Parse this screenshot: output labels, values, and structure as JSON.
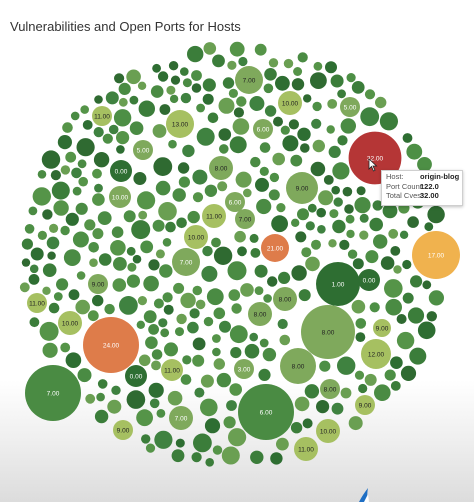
{
  "title": "Vulnerabilities and Open Ports for Hosts",
  "tooltip": {
    "host_key": "Host:",
    "host_value": "origin-blog",
    "ports_key": "Port Count:",
    "ports_value": "122.0",
    "cves_key": "Total Cves:",
    "cves_value": "32.00"
  },
  "colors": {
    "dark_green": "#2e6e32",
    "mid_green": "#4a8b43",
    "light_green": "#7fa95c",
    "olive": "#a6c061",
    "orange": "#de7c4a",
    "amber": "#f0b24e",
    "red": "#b53636"
  },
  "chart_data": {
    "type": "bubble",
    "title": "Vulnerabilities and Open Ports for Hosts",
    "size_measure": "Port Count",
    "color_measure": "Total Cves",
    "labeled_bubbles": [
      {
        "label": "32.00",
        "host": "origin-blog",
        "port_count": 122.0,
        "total_cves": 32.0
      },
      {
        "label": "24.00",
        "total_cves": 24.0
      },
      {
        "label": "21.00",
        "total_cves": 21.0
      },
      {
        "label": "17.00",
        "total_cves": 17.0
      },
      {
        "label": "13.00",
        "total_cves": 13.0
      },
      {
        "label": "12.00",
        "total_cves": 12.0
      },
      {
        "label": "11.00",
        "total_cves": 11.0
      },
      {
        "label": "11.00",
        "total_cves": 11.0
      },
      {
        "label": "11.00",
        "total_cves": 11.0
      },
      {
        "label": "11.00",
        "total_cves": 11.0
      },
      {
        "label": "11.00",
        "total_cves": 11.0
      },
      {
        "label": "10.00",
        "total_cves": 10.0
      },
      {
        "label": "10.00",
        "total_cves": 10.0
      },
      {
        "label": "10.00",
        "total_cves": 10.0
      },
      {
        "label": "10.00",
        "total_cves": 10.0
      },
      {
        "label": "10.00",
        "total_cves": 10.0
      },
      {
        "label": "9.00",
        "total_cves": 9.0
      },
      {
        "label": "9.00",
        "total_cves": 9.0
      },
      {
        "label": "9.00",
        "total_cves": 9.0
      },
      {
        "label": "9.00",
        "total_cves": 9.0
      },
      {
        "label": "9.00",
        "total_cves": 9.0
      },
      {
        "label": "8.00",
        "total_cves": 8.0
      },
      {
        "label": "8.00",
        "total_cves": 8.0
      },
      {
        "label": "8.00",
        "total_cves": 8.0
      },
      {
        "label": "8.00",
        "total_cves": 8.0
      },
      {
        "label": "8.00",
        "total_cves": 8.0
      },
      {
        "label": "8.00",
        "total_cves": 8.0
      },
      {
        "label": "7.00",
        "total_cves": 7.0
      },
      {
        "label": "7.00",
        "total_cves": 7.0
      },
      {
        "label": "7.00",
        "total_cves": 7.0
      },
      {
        "label": "7.00",
        "total_cves": 7.0
      },
      {
        "label": "7.00",
        "total_cves": 7.0
      },
      {
        "label": "6.00",
        "total_cves": 6.0
      },
      {
        "label": "6.00",
        "total_cves": 6.0
      },
      {
        "label": "6.00",
        "total_cves": 6.0
      },
      {
        "label": "5.00",
        "total_cves": 5.0
      },
      {
        "label": "5.00",
        "total_cves": 5.0
      },
      {
        "label": "3.00",
        "total_cves": 3.0
      },
      {
        "label": "1.00",
        "total_cves": 1.0
      },
      {
        "label": "0.00",
        "total_cves": 0.0
      },
      {
        "label": "0.00",
        "total_cves": 0.0
      },
      {
        "label": "0.00",
        "total_cves": 0.0
      }
    ]
  }
}
